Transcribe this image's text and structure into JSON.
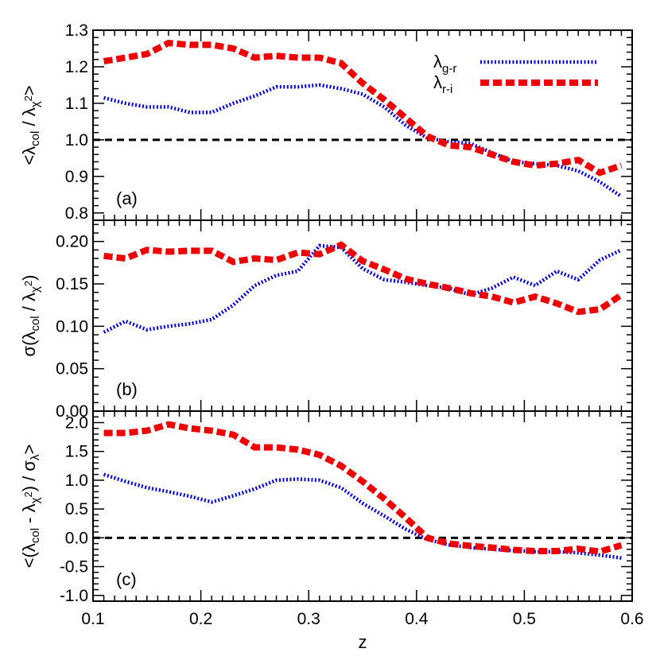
{
  "chart_data": {
    "type": "line",
    "xlabel": "z",
    "xlim": [
      0.1,
      0.6
    ],
    "xticks": [
      0.1,
      0.2,
      0.3,
      0.4,
      0.5,
      0.6
    ],
    "xtick_labels": [
      "0.1",
      "0.2",
      "0.3",
      "0.4",
      "0.5",
      "0.6"
    ],
    "colors": {
      "g_r": "#0000e0",
      "r_i": "#ee0000",
      "ref": "#000000"
    },
    "legend": {
      "placement": "top-right of panel (a)",
      "entries": [
        {
          "symbol": "λ",
          "sub": "g-r",
          "series": "g_r"
        },
        {
          "symbol": "λ",
          "sub": "r-i",
          "series": "r_i"
        }
      ]
    },
    "x": [
      0.11,
      0.13,
      0.15,
      0.17,
      0.19,
      0.21,
      0.23,
      0.25,
      0.27,
      0.29,
      0.31,
      0.33,
      0.35,
      0.37,
      0.39,
      0.41,
      0.43,
      0.45,
      0.47,
      0.49,
      0.51,
      0.53,
      0.55,
      0.57,
      0.59
    ],
    "panels": [
      {
        "tag": "(a)",
        "ylabel_parts": [
          "<λ",
          "col",
          " / λ",
          "χ",
          "2",
          ">"
        ],
        "ylim": [
          0.78,
          1.3
        ],
        "yticks": [
          0.8,
          0.9,
          1.0,
          1.1,
          1.2,
          1.3
        ],
        "ytick_labels": [
          "0.8",
          "0.9",
          "1.0",
          "1.1",
          "1.2",
          "1.3"
        ],
        "ref_line": 1.0,
        "series": [
          {
            "key": "g_r",
            "values": [
              1.115,
              1.1,
              1.09,
              1.09,
              1.075,
              1.075,
              1.1,
              1.12,
              1.145,
              1.145,
              1.15,
              1.14,
              1.125,
              1.09,
              1.04,
              1.005,
              0.995,
              0.99,
              0.965,
              0.94,
              0.935,
              0.93,
              0.915,
              0.885,
              0.845
            ]
          },
          {
            "key": "r_i",
            "values": [
              1.215,
              1.225,
              1.235,
              1.265,
              1.26,
              1.26,
              1.25,
              1.225,
              1.23,
              1.225,
              1.225,
              1.21,
              1.155,
              1.11,
              1.06,
              1.01,
              0.985,
              0.98,
              0.96,
              0.94,
              0.93,
              0.935,
              0.945,
              0.91,
              0.93
            ]
          }
        ]
      },
      {
        "tag": "(b)",
        "ylabel_parts": [
          "σ(λ",
          "col",
          " / λ",
          "χ",
          "2",
          ")"
        ],
        "ylim": [
          0.0,
          0.225
        ],
        "yticks": [
          0.0,
          0.05,
          0.1,
          0.15,
          0.2
        ],
        "ytick_labels": [
          "0.00",
          "0.05",
          "0.10",
          "0.15",
          "0.20"
        ],
        "series": [
          {
            "key": "g_r",
            "values": [
              0.093,
              0.106,
              0.096,
              0.1,
              0.103,
              0.108,
              0.125,
              0.148,
              0.16,
              0.165,
              0.195,
              0.193,
              0.168,
              0.155,
              0.152,
              0.148,
              0.145,
              0.137,
              0.145,
              0.158,
              0.148,
              0.165,
              0.155,
              0.178,
              0.19
            ]
          },
          {
            "key": "r_i",
            "values": [
              0.183,
              0.18,
              0.19,
              0.188,
              0.189,
              0.189,
              0.176,
              0.18,
              0.178,
              0.187,
              0.185,
              0.196,
              0.177,
              0.167,
              0.156,
              0.15,
              0.145,
              0.139,
              0.135,
              0.128,
              0.135,
              0.127,
              0.117,
              0.12,
              0.137
            ]
          }
        ]
      },
      {
        "tag": "(c)",
        "ylabel_parts": [
          "<(λ",
          "col",
          " - λ",
          "χ",
          "2",
          ") / σ",
          "λ",
          ">"
        ],
        "ylim": [
          -1.1,
          2.2
        ],
        "yticks": [
          -1.0,
          -0.5,
          0.0,
          0.5,
          1.0,
          1.5,
          2.0
        ],
        "ytick_labels": [
          "-1.0",
          "-0.5",
          "0.0",
          "0.5",
          "1.0",
          "1.5",
          "2.0"
        ],
        "ref_line": 0.0,
        "series": [
          {
            "key": "g_r",
            "values": [
              1.1,
              0.98,
              0.87,
              0.8,
              0.72,
              0.62,
              0.73,
              0.85,
              1.0,
              1.02,
              1.0,
              0.87,
              0.6,
              0.38,
              0.15,
              -0.03,
              -0.12,
              -0.17,
              -0.2,
              -0.22,
              -0.24,
              -0.24,
              -0.26,
              -0.3,
              -0.35
            ]
          },
          {
            "key": "r_i",
            "values": [
              1.82,
              1.82,
              1.86,
              1.97,
              1.9,
              1.86,
              1.79,
              1.57,
              1.57,
              1.53,
              1.44,
              1.25,
              0.98,
              0.68,
              0.35,
              0.0,
              -0.1,
              -0.14,
              -0.17,
              -0.21,
              -0.23,
              -0.23,
              -0.19,
              -0.24,
              -0.13
            ]
          }
        ]
      }
    ]
  }
}
